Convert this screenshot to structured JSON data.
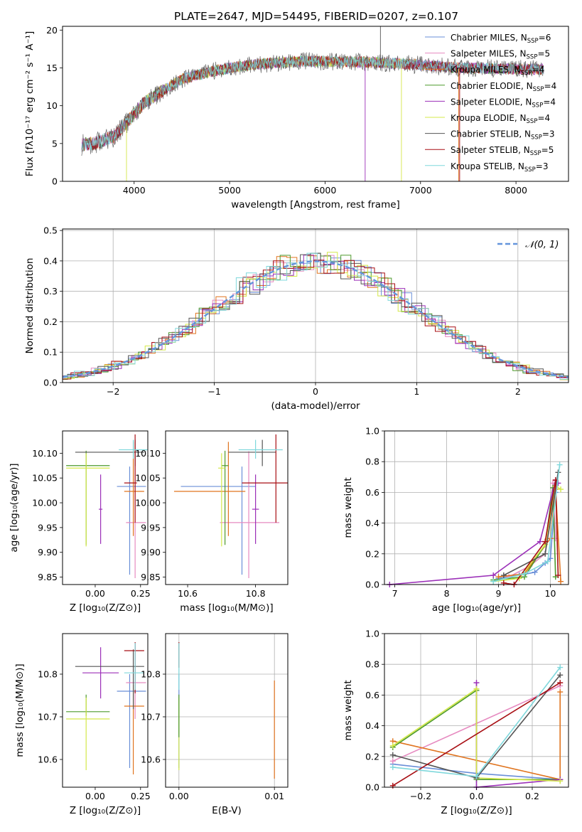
{
  "figure_title": "PLATE=2647, MJD=54495, FIBERID=0207, z=0.107",
  "colors": {
    "Chabrier MILES": "#6a8fd8",
    "Salpeter MILES": "#e68ac0",
    "Kroupa MILES": "#e0741f",
    "Chabrier ELODIE": "#4d9a2c",
    "Salpeter ELODIE": "#9b2fb8",
    "Kroupa ELODIE": "#d4e84a",
    "Chabrier STELIB": "#555555",
    "Salpeter STELIB": "#a80f14",
    "Kroupa STELIB": "#7fd8dc"
  },
  "chart_data": [
    {
      "type": "line",
      "name": "spectrum",
      "title": "PLATE=2647, MJD=54495, FIBERID=0207, z=0.107",
      "xlabel": "wavelength [Angstrom, rest frame]",
      "ylabel": "Flux [fλ10⁻¹⁷ erg cm⁻² s⁻¹ A⁻¹]",
      "xlim": [
        3250,
        8550
      ],
      "ylim": [
        0,
        20.5
      ],
      "xticks": [
        4000,
        5000,
        6000,
        7000,
        8000
      ],
      "yticks": [
        0,
        5,
        10,
        15,
        20
      ],
      "legend_position": "top-right",
      "legend": [
        {
          "label": "Chabrier MILES, N",
          "sub": "SSP",
          "eq": "=6"
        },
        {
          "label": "Salpeter MILES, N",
          "sub": "SSP",
          "eq": "=5"
        },
        {
          "label": "Kroupa MILES, N",
          "sub": "SSP",
          "eq": "=4"
        },
        {
          "label": "Chabrier ELODIE, N",
          "sub": "SSP",
          "eq": "=4"
        },
        {
          "label": "Salpeter ELODIE, N",
          "sub": "SSP",
          "eq": "=4"
        },
        {
          "label": "Kroupa ELODIE, N",
          "sub": "SSP",
          "eq": "=4"
        },
        {
          "label": "Chabrier STELIB, N",
          "sub": "SSP",
          "eq": "=3"
        },
        {
          "label": "Salpeter STELIB, N",
          "sub": "SSP",
          "eq": "=5"
        },
        {
          "label": "Kroupa STELIB, N",
          "sub": "SSP",
          "eq": "=3"
        }
      ],
      "continuum": {
        "x": [
          3450,
          3600,
          3800,
          3950,
          4100,
          4300,
          4500,
          4800,
          5100,
          5400,
          5800,
          6200,
          6600,
          7000,
          7400,
          7800,
          8300
        ],
        "y": [
          4.8,
          5.1,
          6.0,
          8.2,
          10.3,
          12.0,
          13.5,
          14.5,
          15.2,
          15.6,
          15.9,
          15.8,
          15.7,
          15.4,
          15.0,
          14.9,
          14.8
        ]
      },
      "spikes": [
        {
          "series": "Chabrier STELIB",
          "x": 6580,
          "y_top": 20.5
        },
        {
          "series": "Salpeter ELODIE",
          "x": 6420,
          "y_top": 0
        },
        {
          "series": "Kroupa MILES",
          "x": 7400,
          "y_top": 0
        },
        {
          "series": "Salpeter STELIB",
          "x": 7410,
          "y_top": 0
        },
        {
          "series": "Kroupa ELODIE",
          "x": 6800,
          "y_top": 0
        },
        {
          "series": "Kroupa ELODIE",
          "x": 3920,
          "y_top": 0
        }
      ]
    },
    {
      "type": "line",
      "name": "residual-distribution",
      "xlabel": "(data-model)/error",
      "ylabel": "Normed distribution",
      "xlim": [
        -2.5,
        2.5
      ],
      "ylim": [
        0,
        0.505
      ],
      "xticks": [
        -2,
        -1,
        0,
        1,
        2
      ],
      "yticks": [
        0.0,
        0.1,
        0.2,
        0.3,
        0.4,
        0.5
      ],
      "legend_position": "top-right",
      "legend": [
        {
          "label": "𝒩(0, 1)"
        }
      ],
      "grid": true
    },
    {
      "type": "scatter",
      "name": "age-vs-metallicity",
      "xlabel": "Z [log₁₀(Z/Z⊙)]",
      "ylabel": "age  [log₁₀(age/yr)]",
      "xlim": [
        -0.18,
        0.29
      ],
      "ylim": [
        9.835,
        10.145
      ],
      "xticks": [
        0.0,
        0.25
      ],
      "yticks": [
        9.85,
        9.9,
        9.95,
        10.0,
        10.05,
        10.1
      ],
      "points": [
        {
          "series": "Chabrier MILES",
          "x": 0.19,
          "y": 10.033,
          "xerr": [
            0.07,
            0.09
          ],
          "yerr": [
            0.178,
            0.04
          ]
        },
        {
          "series": "Salpeter MILES",
          "x": 0.22,
          "y": 9.96,
          "xerr": [
            0.05,
            0.06
          ],
          "yerr": [
            0.112,
            0.144
          ]
        },
        {
          "series": "Kroupa MILES",
          "x": 0.21,
          "y": 10.023,
          "xerr": [
            0.05,
            0.06
          ],
          "yerr": [
            0.09,
            0.1
          ]
        },
        {
          "series": "Chabrier ELODIE",
          "x": -0.05,
          "y": 10.075,
          "xerr": [
            0.11,
            0.13
          ],
          "yerr": [
            0.16,
            0.03
          ]
        },
        {
          "series": "Salpeter ELODIE",
          "x": 0.03,
          "y": 9.987,
          "xerr": [
            0.01,
            0.01
          ],
          "yerr": [
            0.07,
            0.07
          ]
        },
        {
          "series": "Kroupa ELODIE",
          "x": -0.05,
          "y": 10.07,
          "xerr": [
            0.11,
            0.13
          ],
          "yerr": [
            0.158,
            0.03
          ]
        },
        {
          "series": "Chabrier STELIB",
          "x": 0.22,
          "y": 10.102,
          "xerr": [
            0.33,
            0.05
          ],
          "yerr": [
            0.028,
            0.025
          ]
        },
        {
          "series": "Salpeter STELIB",
          "x": 0.22,
          "y": 10.04,
          "xerr": [
            0.06,
            0.01
          ],
          "yerr": [
            0.08,
            0.098
          ]
        },
        {
          "series": "Kroupa STELIB",
          "x": 0.21,
          "y": 10.107,
          "xerr": [
            0.08,
            0.08
          ],
          "yerr": [
            0.018,
            0.02
          ]
        }
      ]
    },
    {
      "type": "scatter",
      "name": "age-vs-mass",
      "xlabel": "mass [log₁₀(M/M⊙)]",
      "ylabel": "",
      "xlim": [
        10.535,
        10.895
      ],
      "ylim": [
        9.835,
        10.145
      ],
      "xticks": [
        10.6,
        10.8
      ],
      "yticks": [
        9.85,
        9.9,
        9.95,
        10.0,
        10.05,
        10.1
      ],
      "points": [
        {
          "series": "Chabrier MILES",
          "x": 10.76,
          "y": 10.033,
          "xerr": [
            0.18,
            0.04
          ],
          "yerr": [
            0.178,
            0.04
          ]
        },
        {
          "series": "Salpeter MILES",
          "x": 10.78,
          "y": 9.96,
          "xerr": [
            0.085,
            0.09
          ],
          "yerr": [
            0.112,
            0.144
          ]
        },
        {
          "series": "Kroupa MILES",
          "x": 10.72,
          "y": 10.023,
          "xerr": [
            0.16,
            0.05
          ],
          "yerr": [
            0.09,
            0.1
          ]
        },
        {
          "series": "Chabrier ELODIE",
          "x": 10.71,
          "y": 10.075,
          "xerr": [
            0.01,
            0.01
          ],
          "yerr": [
            0.16,
            0.03
          ]
        },
        {
          "series": "Salpeter ELODIE",
          "x": 10.8,
          "y": 9.987,
          "xerr": [
            0.01,
            0.01
          ],
          "yerr": [
            0.07,
            0.07
          ]
        },
        {
          "series": "Kroupa ELODIE",
          "x": 10.7,
          "y": 10.07,
          "xerr": [
            0.01,
            0.01
          ],
          "yerr": [
            0.158,
            0.03
          ]
        },
        {
          "series": "Chabrier STELIB",
          "x": 10.82,
          "y": 10.102,
          "xerr": [
            0.1,
            0.04
          ],
          "yerr": [
            0.028,
            0.025
          ]
        },
        {
          "series": "Salpeter STELIB",
          "x": 10.86,
          "y": 10.04,
          "xerr": [
            0.1,
            0.06
          ],
          "yerr": [
            0.08,
            0.098
          ]
        },
        {
          "series": "Kroupa STELIB",
          "x": 10.8,
          "y": 10.107,
          "xerr": [
            0.05,
            0.08
          ],
          "yerr": [
            0.018,
            0.02
          ]
        }
      ]
    },
    {
      "type": "line",
      "name": "mass-weight-vs-age",
      "xlabel": "age  [log₁₀(age/yr)]",
      "ylabel": "mass weight",
      "xlim": [
        6.8,
        10.35
      ],
      "ylim": [
        0,
        1.0
      ],
      "xticks": [
        7,
        8,
        9,
        10
      ],
      "yticks": [
        0.0,
        0.2,
        0.4,
        0.6,
        0.8,
        1.0
      ],
      "grid": true,
      "series": [
        {
          "series": "Chabrier MILES",
          "x": [
            9.0,
            9.4,
            9.7,
            9.9,
            10.0,
            10.1
          ],
          "y": [
            0.04,
            0.06,
            0.08,
            0.14,
            0.17,
            0.6
          ]
        },
        {
          "series": "Salpeter MILES",
          "x": [
            9.2,
            9.6,
            9.9,
            10.05,
            10.1
          ],
          "y": [
            0.05,
            0.12,
            0.2,
            0.66,
            0.3
          ]
        },
        {
          "series": "Kroupa MILES",
          "x": [
            9.0,
            9.5,
            10.0,
            10.1,
            10.2
          ],
          "y": [
            0.05,
            0.07,
            0.3,
            0.62,
            0.02
          ]
        },
        {
          "series": "Chabrier ELODIE",
          "x": [
            8.9,
            9.5,
            9.9,
            10.05,
            10.1
          ],
          "y": [
            0.03,
            0.05,
            0.26,
            0.63,
            0.05
          ]
        },
        {
          "series": "Salpeter ELODIE",
          "x": [
            6.9,
            8.9,
            9.8,
            10.1,
            10.15
          ],
          "y": [
            0.0,
            0.06,
            0.28,
            0.68,
            0.66
          ]
        },
        {
          "series": "Kroupa ELODIE",
          "x": [
            8.9,
            9.4,
            9.9,
            10.1,
            10.2
          ],
          "y": [
            0.02,
            0.04,
            0.26,
            0.64,
            0.62
          ]
        },
        {
          "series": "Chabrier STELIB",
          "x": [
            9.1,
            9.9,
            10.15
          ],
          "y": [
            0.06,
            0.2,
            0.73
          ]
        },
        {
          "series": "Salpeter STELIB",
          "x": [
            9.1,
            9.3,
            9.9,
            10.1,
            10.15
          ],
          "y": [
            0.01,
            0.0,
            0.28,
            0.68,
            0.06
          ]
        },
        {
          "series": "Kroupa STELIB",
          "x": [
            8.9,
            9.5,
            9.95,
            10.18
          ],
          "y": [
            0.02,
            0.07,
            0.15,
            0.78
          ]
        }
      ]
    },
    {
      "type": "scatter",
      "name": "mass-vs-metallicity",
      "xlabel": "Z [log₁₀(Z/Z⊙)]",
      "ylabel": "mass [log₁₀(M/M⊙)]",
      "xlim": [
        -0.18,
        0.29
      ],
      "ylim": [
        10.535,
        10.895
      ],
      "xticks": [
        0.0,
        0.25
      ],
      "yticks": [
        10.6,
        10.7,
        10.8
      ],
      "points": [
        {
          "series": "Chabrier MILES",
          "x": 0.19,
          "y": 10.76,
          "xerr": [
            0.07,
            0.09
          ],
          "yerr": [
            0.18,
            0.04
          ]
        },
        {
          "series": "Salpeter MILES",
          "x": 0.22,
          "y": 10.78,
          "xerr": [
            0.05,
            0.06
          ],
          "yerr": [
            0.085,
            0.09
          ]
        },
        {
          "series": "Kroupa MILES",
          "x": 0.21,
          "y": 10.725,
          "xerr": [
            0.05,
            0.06
          ],
          "yerr": [
            0.16,
            0.05
          ]
        },
        {
          "series": "Chabrier ELODIE",
          "x": -0.05,
          "y": 10.712,
          "xerr": [
            0.11,
            0.13
          ],
          "yerr": [
            0.01,
            0.04
          ]
        },
        {
          "series": "Salpeter ELODIE",
          "x": 0.03,
          "y": 10.803,
          "xerr": [
            0.1,
            0.1
          ],
          "yerr": [
            0.06,
            0.06
          ]
        },
        {
          "series": "Kroupa ELODIE",
          "x": -0.05,
          "y": 10.695,
          "xerr": [
            0.11,
            0.13
          ],
          "yerr": [
            0.12,
            0.05
          ]
        },
        {
          "series": "Chabrier STELIB",
          "x": 0.21,
          "y": 10.818,
          "xerr": [
            0.32,
            0.06
          ],
          "yerr": [
            0.1,
            0.04
          ]
        },
        {
          "series": "Salpeter STELIB",
          "x": 0.22,
          "y": 10.855,
          "xerr": [
            0.06,
            0.05
          ],
          "yerr": [
            0.1,
            0.02
          ]
        },
        {
          "series": "Kroupa STELIB",
          "x": 0.22,
          "y": 10.803,
          "xerr": [
            0.06,
            0.05
          ],
          "yerr": [
            0.04,
            0.07
          ]
        }
      ]
    },
    {
      "type": "scatter",
      "name": "mass-vs-extinction",
      "xlabel": "E(B-V)",
      "ylabel": "",
      "xlim": [
        -0.0014,
        0.0114
      ],
      "ylim": [
        10.535,
        10.895
      ],
      "xticks": [
        0.0,
        0.01
      ],
      "yticks": [
        10.6,
        10.7,
        10.8
      ],
      "grid": true,
      "points": [
        {
          "series": "Chabrier MILES",
          "x": 0.0,
          "y": 10.76,
          "yerr": [
            0.18,
            0.04
          ]
        },
        {
          "series": "Kroupa MILES",
          "x": 0.01,
          "y": 10.725,
          "yerr": [
            0.17,
            0.06
          ]
        },
        {
          "series": "Kroupa ELODIE",
          "x": 0.0,
          "y": 10.695,
          "yerr": [
            0.12,
            0.05
          ]
        },
        {
          "series": "Chabrier ELODIE",
          "x": 0.0,
          "y": 10.712,
          "yerr": [
            0.06,
            0.04
          ]
        },
        {
          "series": "Salpeter STELIB",
          "x": 0.0,
          "y": 10.855,
          "yerr": [
            0.04,
            0.02
          ]
        },
        {
          "series": "Kroupa STELIB",
          "x": 0.0,
          "y": 10.803,
          "yerr": [
            0.04,
            0.07
          ]
        }
      ]
    },
    {
      "type": "line",
      "name": "mass-weight-vs-metallicity",
      "xlabel": "Z [log₁₀(Z/Z⊙)]",
      "ylabel": "mass weight",
      "xlim": [
        -0.33,
        0.33
      ],
      "ylim": [
        0,
        1.0
      ],
      "xticks": [
        -0.2,
        0.0,
        0.2
      ],
      "yticks": [
        0.0,
        0.2,
        0.4,
        0.6,
        0.8,
        1.0
      ],
      "grid": true,
      "series": [
        {
          "series": "Chabrier MILES",
          "x": [
            -0.3,
            0.0,
            0.3
          ],
          "y": [
            0.15,
            0.09,
            0.05
          ]
        },
        {
          "series": "Salpeter MILES",
          "x": [
            -0.3,
            0.3
          ],
          "y": [
            0.17,
            0.66
          ]
        },
        {
          "series": "Kroupa MILES",
          "x": [
            -0.3,
            0.3,
            0.3
          ],
          "y": [
            0.3,
            0.05,
            0.62
          ]
        },
        {
          "series": "Chabrier ELODIE",
          "x": [
            -0.3,
            0.0,
            0.0,
            0.3
          ],
          "y": [
            0.26,
            0.63,
            0.05,
            0.05
          ]
        },
        {
          "series": "Salpeter ELODIE",
          "x": [
            0.0,
            0.0,
            0.3
          ],
          "y": [
            0.68,
            0.0,
            0.05
          ]
        },
        {
          "series": "Kroupa ELODIE",
          "x": [
            -0.3,
            0.0,
            0.0,
            0.3
          ],
          "y": [
            0.27,
            0.64,
            0.06,
            0.04
          ]
        },
        {
          "series": "Chabrier STELIB",
          "x": [
            -0.3,
            0.0,
            0.3
          ],
          "y": [
            0.21,
            0.06,
            0.73
          ]
        },
        {
          "series": "Salpeter STELIB",
          "x": [
            -0.3,
            0.3
          ],
          "y": [
            0.01,
            0.68
          ]
        },
        {
          "series": "Kroupa STELIB",
          "x": [
            -0.3,
            0.0,
            0.3
          ],
          "y": [
            0.13,
            0.07,
            0.78
          ]
        }
      ]
    }
  ]
}
